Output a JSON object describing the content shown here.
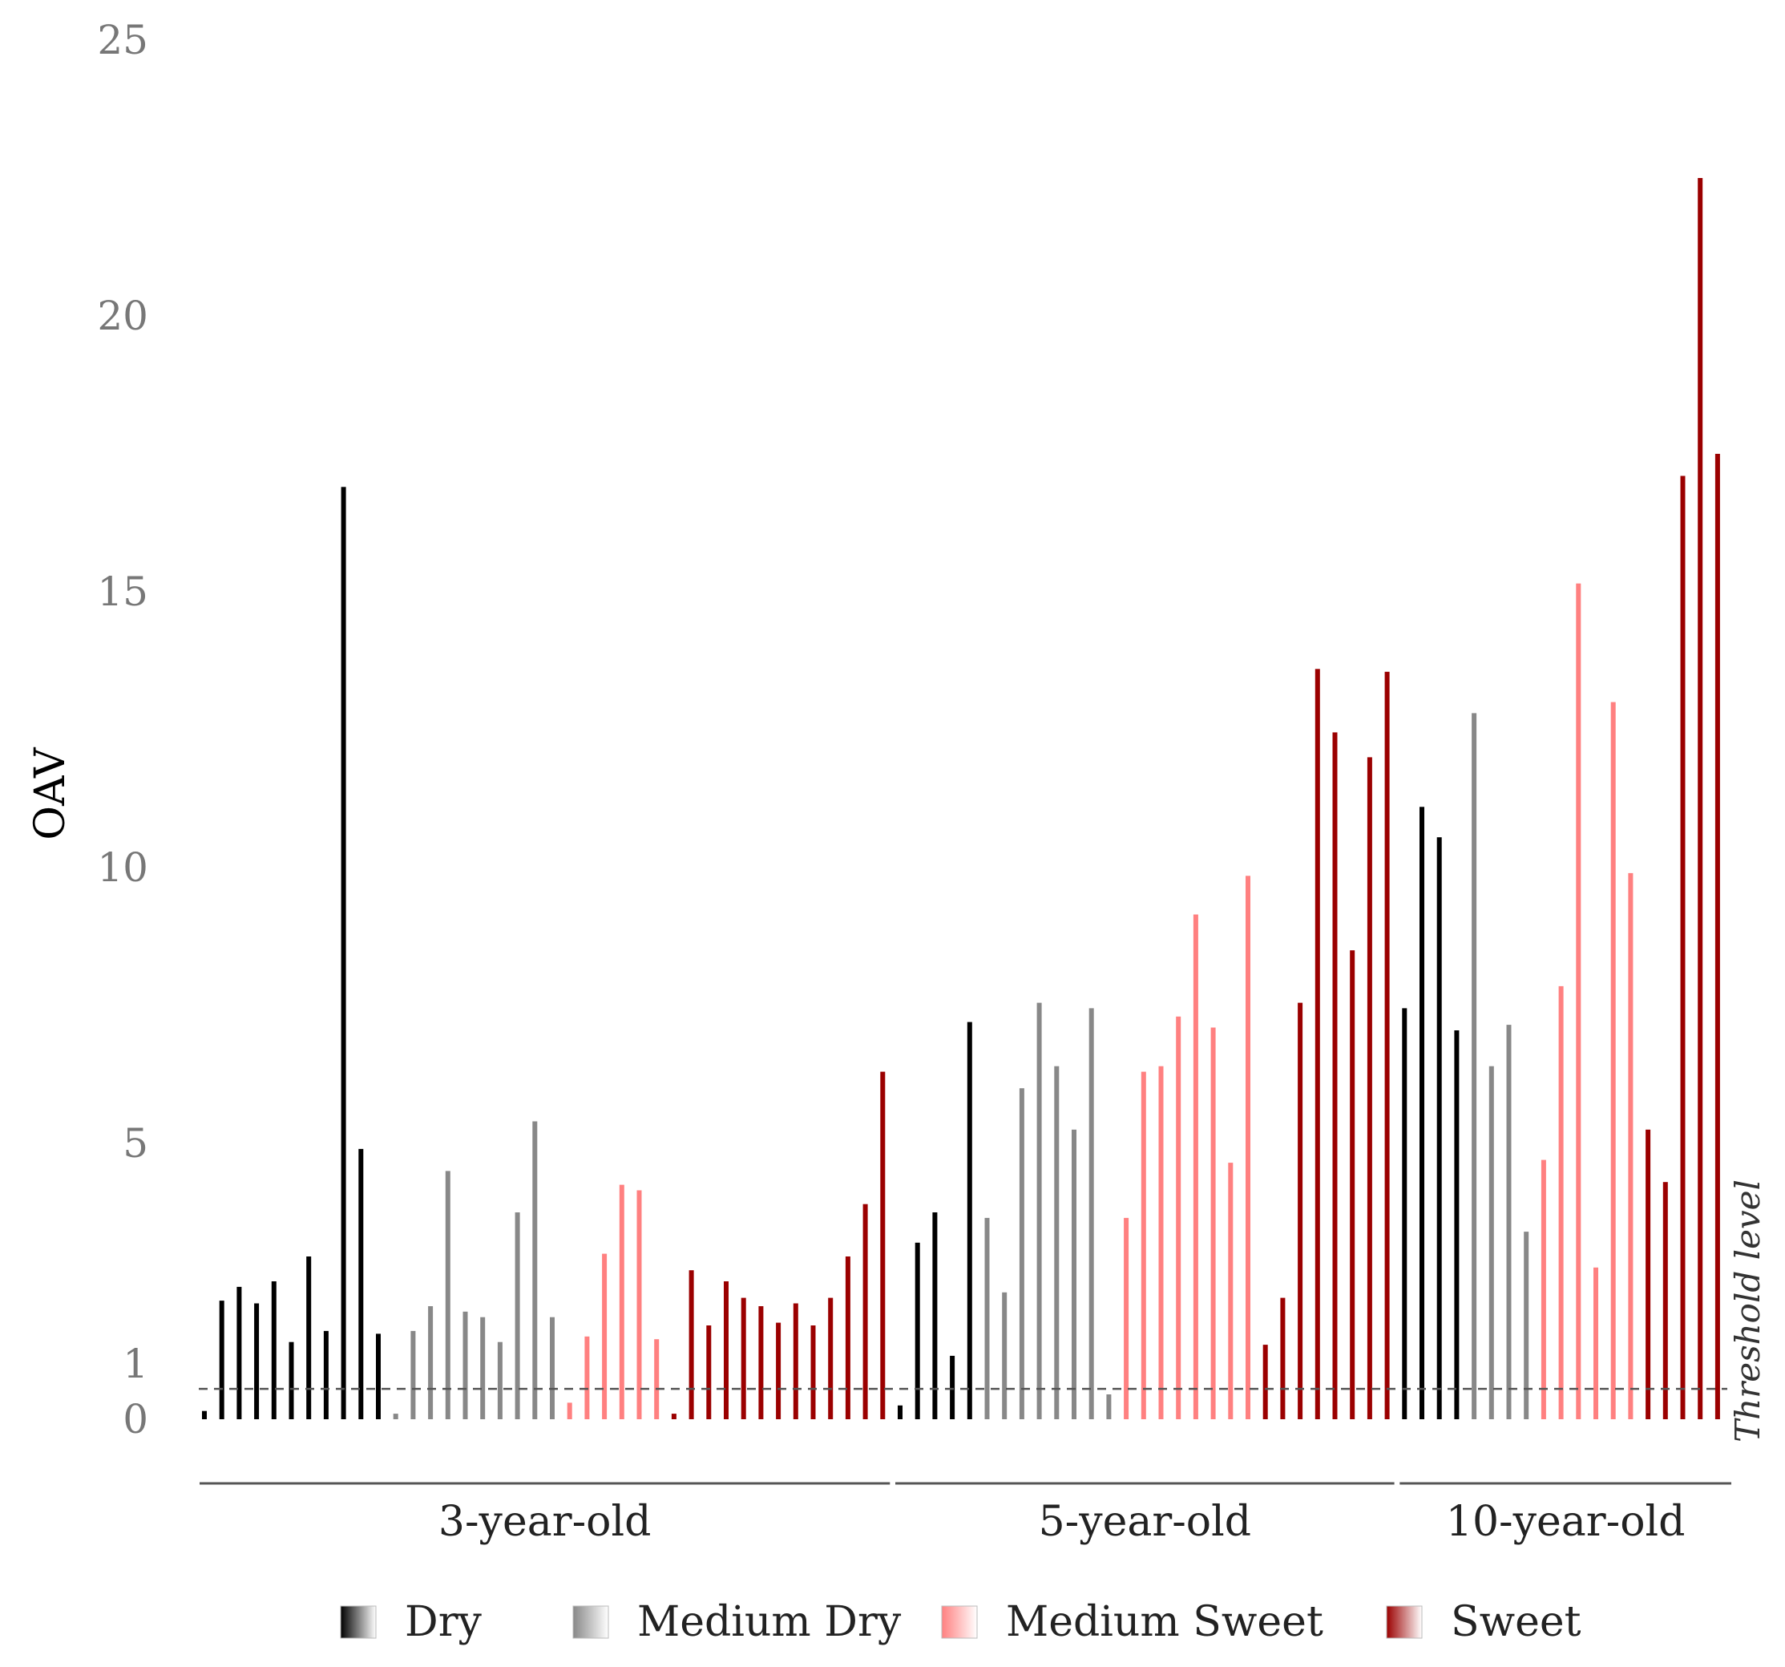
{
  "chart_data": {
    "type": "bar",
    "title": "",
    "xlabel": "",
    "ylabel": "OAV",
    "ylim": [
      0,
      25
    ],
    "yticks": [
      0,
      1,
      5,
      10,
      15,
      20,
      25
    ],
    "ytick_labels": [
      "0",
      "1",
      "5",
      "10",
      "15",
      "20",
      "25"
    ],
    "threshold": {
      "value": 0.55,
      "label": "Threshold level"
    },
    "colors": {
      "Dry": "#000000",
      "Medium Dry": "#888888",
      "Medium Sweet": "#FF8080",
      "Sweet": "#9B0000"
    },
    "legend": [
      "Dry",
      "Medium Dry",
      "Medium Sweet",
      "Sweet"
    ],
    "groups": [
      {
        "label": "3-year-old",
        "series": [
          {
            "name": "Dry",
            "values": [
              0.15,
              2.15,
              2.4,
              2.1,
              2.5,
              1.4,
              2.95,
              1.6,
              16.9,
              4.9,
              1.55
            ]
          },
          {
            "name": "Medium Dry",
            "values": [
              0.1,
              1.6,
              2.05,
              4.5,
              1.95,
              1.85,
              1.4,
              3.75,
              5.4,
              1.85
            ]
          },
          {
            "name": "Medium Sweet",
            "values": [
              0.3,
              1.5,
              3.0,
              4.25,
              4.15,
              1.45
            ]
          },
          {
            "name": "Sweet",
            "values": [
              0.1,
              2.7,
              1.7,
              2.5,
              2.2,
              2.05,
              1.75,
              2.1,
              1.7,
              2.2,
              2.95,
              3.9,
              6.3
            ]
          }
        ]
      },
      {
        "label": "5-year-old",
        "series": [
          {
            "name": "Dry",
            "values": [
              0.25,
              3.2,
              3.75,
              1.15,
              7.2
            ]
          },
          {
            "name": "Medium Dry",
            "values": [
              3.65,
              2.3,
              6.0,
              7.55,
              6.4,
              5.25,
              7.45,
              0.45
            ]
          },
          {
            "name": "Medium Sweet",
            "values": [
              3.65,
              6.3,
              6.4,
              7.3,
              9.15,
              7.1,
              4.65,
              9.85
            ]
          },
          {
            "name": "Sweet",
            "values": [
              1.35,
              2.2,
              7.55,
              13.6,
              12.45,
              8.5,
              12.0,
              13.55
            ]
          }
        ]
      },
      {
        "label": "10-year-old",
        "series": [
          {
            "name": "Dry",
            "values": [
              7.45,
              11.1,
              10.55,
              7.05
            ]
          },
          {
            "name": "Medium Dry",
            "values": [
              12.8,
              6.4,
              7.15,
              3.4
            ]
          },
          {
            "name": "Medium Sweet",
            "values": [
              4.7,
              7.85,
              15.15,
              2.75,
              13.0,
              9.9
            ]
          },
          {
            "name": "Sweet",
            "values": [
              5.25,
              4.3,
              17.1,
              22.5,
              17.5
            ]
          }
        ]
      }
    ]
  }
}
